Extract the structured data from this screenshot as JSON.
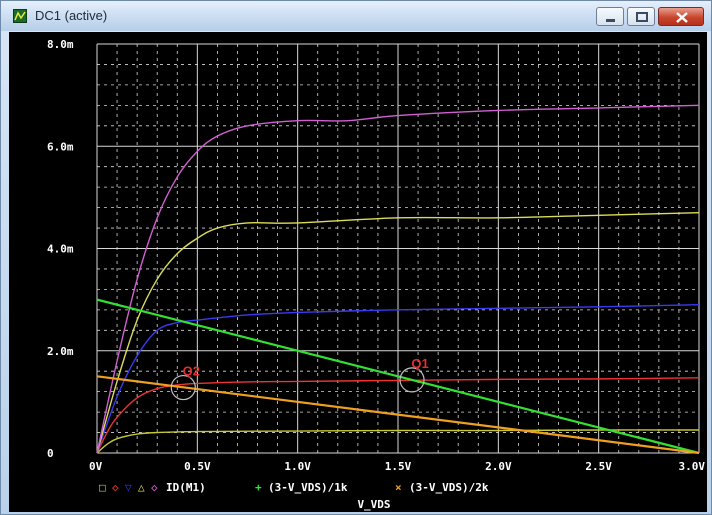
{
  "window": {
    "title": "DC1 (active)",
    "buttons": [
      "minimize",
      "maximize",
      "close"
    ]
  },
  "colors": {
    "background": "#000000",
    "grid": "#d8d8d8",
    "curve_vgs_low": "#c8c832",
    "curve_vgs_2": "#ee3333",
    "curve_vgs_3": "#3a3af0",
    "curve_vgs_4": "#dcdc5a",
    "curve_vgs_5": "#d060d0",
    "load_line_1k": "#33e033",
    "load_line_2k": "#f0a020",
    "annotation": "#e03030"
  },
  "legend": {
    "markers": [
      "□",
      "◇",
      "▽",
      "△",
      "◇"
    ],
    "marker_colors": [
      "#c8c832",
      "#ee3333",
      "#3a3af0",
      "#dcdc5a",
      "#d060d0"
    ],
    "items": [
      {
        "text": "ID(M1)"
      },
      {
        "marker": "+",
        "text": "(3-V_VDS)/1k"
      },
      {
        "marker": "×",
        "text": "(3-V_VDS)/2k"
      }
    ]
  },
  "annotations": {
    "q1": "Q1",
    "q2": "Q2"
  },
  "chart_data": {
    "type": "line",
    "xlabel": "V_VDS",
    "ylabel": "",
    "xlim": [
      0,
      3.0
    ],
    "ylim": [
      0,
      0.008
    ],
    "x_ticks": [
      "0V",
      "0.5V",
      "1.0V",
      "1.5V",
      "2.0V",
      "2.5V",
      "3.0V"
    ],
    "y_ticks": [
      "0",
      "2.0m",
      "4.0m",
      "6.0m",
      "8.0m"
    ],
    "grid": true,
    "series": [
      {
        "x": [
          0,
          0.05,
          0.1,
          0.2,
          0.3,
          0.5,
          1.0,
          1.5,
          2.0,
          2.5,
          3.0
        ],
        "y": [
          0,
          0.00017,
          0.00028,
          0.00037,
          0.0004,
          0.00042,
          0.00043,
          0.00044,
          0.00044,
          0.00045,
          0.00045
        ]
      },
      {
        "x": [
          0,
          0.05,
          0.1,
          0.2,
          0.3,
          0.4,
          0.5,
          0.75,
          1.0,
          1.5,
          2.0,
          2.5,
          3.0
        ],
        "y": [
          0,
          0.0004,
          0.0007,
          0.00108,
          0.00126,
          0.00133,
          0.00136,
          0.00139,
          0.0014,
          0.00142,
          0.00144,
          0.00145,
          0.00147
        ]
      },
      {
        "x": [
          0,
          0.1,
          0.2,
          0.3,
          0.4,
          0.5,
          0.75,
          1.0,
          1.5,
          2.0,
          2.5,
          3.0
        ],
        "y": [
          0,
          0.0011,
          0.0019,
          0.0024,
          0.00255,
          0.0026,
          0.0027,
          0.00275,
          0.0028,
          0.00283,
          0.00286,
          0.0029
        ]
      },
      {
        "x": [
          0,
          0.1,
          0.2,
          0.3,
          0.4,
          0.5,
          0.6,
          0.75,
          1.0,
          1.5,
          2.0,
          2.5,
          3.0
        ],
        "y": [
          0,
          0.0014,
          0.0026,
          0.0034,
          0.0039,
          0.0042,
          0.0044,
          0.0045,
          0.0045,
          0.0046,
          0.0046,
          0.00465,
          0.0047
        ]
      },
      {
        "x": [
          0,
          0.1,
          0.2,
          0.3,
          0.4,
          0.5,
          0.6,
          0.75,
          1.0,
          1.25,
          1.5,
          2.0,
          2.5,
          3.0
        ],
        "y": [
          0,
          0.0018,
          0.0034,
          0.0046,
          0.0054,
          0.0059,
          0.0062,
          0.0064,
          0.0065,
          0.0065,
          0.0066,
          0.0067,
          0.00675,
          0.0068
        ]
      },
      {
        "name": "(3-V_VDS)/1k",
        "x": [
          0,
          3.0
        ],
        "y": [
          0.003,
          0
        ]
      },
      {
        "name": "(3-V_VDS)/2k",
        "x": [
          0,
          3.0
        ],
        "y": [
          0.0015,
          0
        ]
      }
    ],
    "markers": [
      {
        "label": "Q1",
        "x": 1.57,
        "y": 0.00143
      },
      {
        "label": "Q2",
        "x": 0.43,
        "y": 0.00128
      }
    ]
  }
}
